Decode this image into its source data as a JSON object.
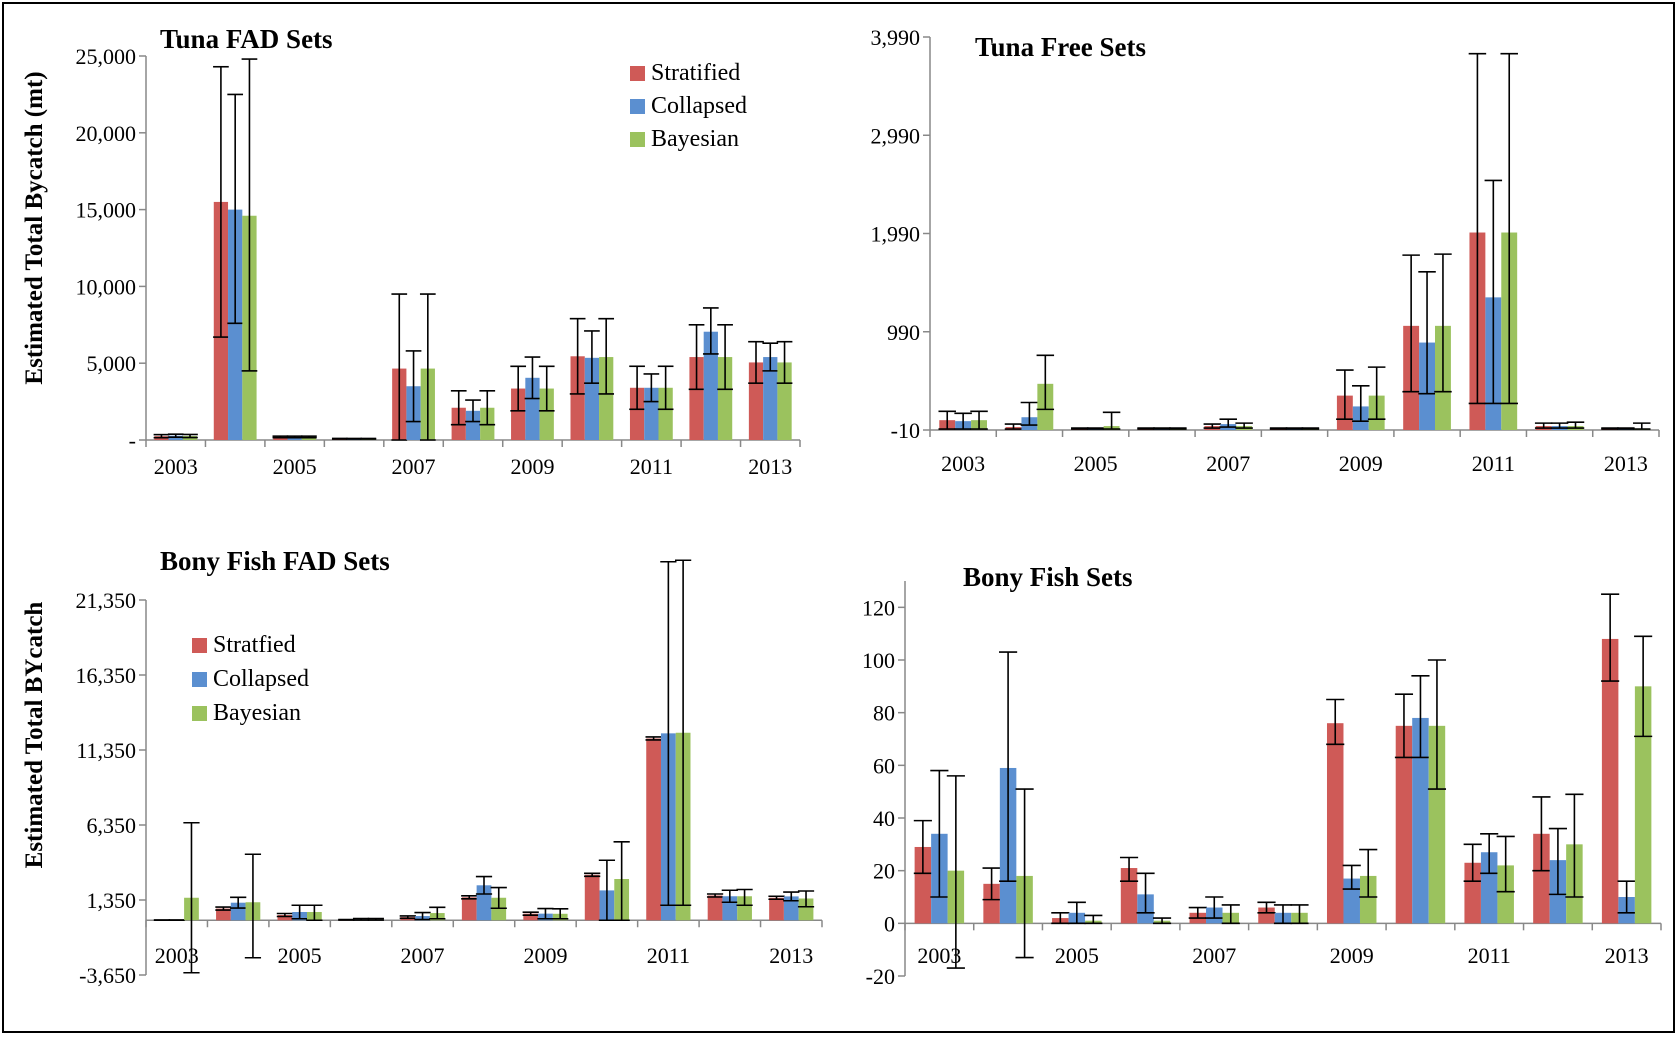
{
  "figure": {
    "ylabel_top": "Estimated Total Bycatch (mt)",
    "ylabel_bottom": "Estimated Total BYcatch"
  },
  "colors": {
    "s1": "#cf5a57",
    "s2": "#5b8fd0",
    "s3": "#9bc25e"
  },
  "chart_data": [
    {
      "type": "bar",
      "title": "Tuna FAD Sets",
      "categories": [
        "2003",
        "2004",
        "2005",
        "2006",
        "2007",
        "2008",
        "2009",
        "2010",
        "2011",
        "2012",
        "2013"
      ],
      "xtick_labels": [
        "2003",
        "",
        "2005",
        "",
        "2007",
        "",
        "2009",
        "",
        "2011",
        "",
        "2013"
      ],
      "ylim": [
        0,
        25000
      ],
      "yticks": [
        0,
        5000,
        10000,
        15000,
        20000,
        25000
      ],
      "ytick_labels": [
        "-",
        "5,000",
        "10,000",
        "15,000",
        "20,000",
        "25,000"
      ],
      "legend_position": "top-right",
      "series": [
        {
          "name": "Stratified",
          "values": [
            250,
            15500,
            200,
            80,
            4650,
            2100,
            3350,
            5450,
            3400,
            5400,
            5050
          ],
          "err_low": [
            150,
            6700,
            150,
            60,
            0,
            1000,
            1900,
            3000,
            2000,
            3300,
            3700
          ],
          "err_high": [
            350,
            24300,
            250,
            100,
            9500,
            3200,
            4800,
            7900,
            4800,
            7500,
            6400
          ]
        },
        {
          "name": "Collapsed",
          "values": [
            280,
            15000,
            200,
            80,
            3500,
            1900,
            4050,
            5350,
            3400,
            7050,
            5400
          ],
          "err_low": [
            180,
            7600,
            150,
            60,
            1200,
            1200,
            2700,
            3700,
            2500,
            5600,
            4500
          ],
          "err_high": [
            380,
            22500,
            250,
            100,
            5800,
            2600,
            5400,
            7100,
            4300,
            8600,
            6300
          ]
        },
        {
          "name": "Bayesian",
          "values": [
            260,
            14600,
            200,
            80,
            4650,
            2100,
            3350,
            5400,
            3400,
            5400,
            5050
          ],
          "err_low": [
            160,
            4500,
            150,
            60,
            0,
            1000,
            1900,
            3000,
            2000,
            3300,
            3700
          ],
          "err_high": [
            360,
            24800,
            250,
            100,
            9500,
            3200,
            4800,
            7900,
            4800,
            7500,
            6400
          ]
        }
      ]
    },
    {
      "type": "bar",
      "title": "Tuna Free Sets",
      "categories": [
        "2003",
        "2004",
        "2005",
        "2006",
        "2007",
        "2008",
        "2009",
        "2010",
        "2011",
        "2012",
        "2013"
      ],
      "xtick_labels": [
        "2003",
        "",
        "2005",
        "",
        "2007",
        "",
        "2009",
        "",
        "2011",
        "",
        "2013"
      ],
      "ylim": [
        -10,
        3990
      ],
      "yticks": [
        -10,
        990,
        1990,
        2990,
        3990
      ],
      "ytick_labels": [
        "-10",
        "990",
        "1,990",
        "2,990",
        "3,990"
      ],
      "series": [
        {
          "name": "Stratified",
          "values": [
            90,
            20,
            5,
            5,
            30,
            5,
            340,
            1050,
            2000,
            30,
            5
          ],
          "err_low": [
            0,
            0,
            0,
            0,
            10,
            0,
            100,
            380,
            260,
            10,
            0
          ],
          "err_high": [
            180,
            50,
            10,
            10,
            50,
            10,
            600,
            1770,
            3820,
            60,
            10
          ]
        },
        {
          "name": "Collapsed",
          "values": [
            80,
            120,
            5,
            5,
            50,
            5,
            230,
            880,
            1340,
            30,
            5
          ],
          "err_low": [
            0,
            40,
            0,
            0,
            20,
            0,
            80,
            360,
            260,
            10,
            0
          ],
          "err_high": [
            160,
            270,
            10,
            10,
            100,
            10,
            440,
            1600,
            2530,
            60,
            10
          ]
        },
        {
          "name": "Bayesian",
          "values": [
            90,
            460,
            30,
            5,
            30,
            5,
            340,
            1050,
            2000,
            30,
            5
          ],
          "err_low": [
            0,
            200,
            0,
            0,
            10,
            0,
            100,
            380,
            260,
            10,
            0
          ],
          "err_high": [
            180,
            750,
            170,
            10,
            60,
            10,
            630,
            1780,
            3820,
            70,
            60
          ]
        }
      ]
    },
    {
      "type": "bar",
      "title": "Bony Fish FAD Sets",
      "categories": [
        "2003",
        "2004",
        "2005",
        "2006",
        "2007",
        "2008",
        "2009",
        "2010",
        "2011",
        "2012",
        "2013"
      ],
      "xtick_labels": [
        "2003",
        "",
        "2005",
        "",
        "2007",
        "",
        "2009",
        "",
        "2011",
        "",
        "2013"
      ],
      "ylim": [
        -3650,
        21350
      ],
      "yticks": [
        -3650,
        1350,
        6350,
        11350,
        16350,
        21350
      ],
      "ytick_labels": [
        "-3,650",
        "1,350",
        "6,350",
        "11,350",
        "16,350",
        "21,350"
      ],
      "legend_position": "top-left",
      "series": [
        {
          "name": "Stratfied",
          "values": [
            10,
            780,
            350,
            30,
            210,
            1530,
            440,
            3030,
            12120,
            1650,
            1500
          ],
          "err_low": [
            0,
            680,
            250,
            10,
            130,
            1430,
            340,
            2930,
            12020,
            1550,
            1400
          ],
          "err_high": [
            20,
            880,
            450,
            50,
            290,
            1630,
            540,
            3130,
            12220,
            1750,
            1600
          ]
        },
        {
          "name": "Collapsed",
          "values": [
            10,
            1170,
            550,
            60,
            280,
            2330,
            440,
            1990,
            12460,
            1600,
            1590
          ],
          "err_low": [
            0,
            810,
            100,
            10,
            50,
            1750,
            100,
            0,
            1000,
            1200,
            1300
          ],
          "err_high": [
            20,
            1530,
            1000,
            110,
            510,
            2910,
            780,
            4000,
            23900,
            2000,
            1880
          ]
        },
        {
          "name": "Bayesian",
          "values": [
            1500,
            1200,
            550,
            60,
            480,
            1500,
            430,
            2750,
            12500,
            1600,
            1450
          ],
          "err_low": [
            -3500,
            -2500,
            0,
            10,
            100,
            800,
            100,
            0,
            1000,
            1000,
            900
          ],
          "err_high": [
            6500,
            4400,
            1000,
            110,
            860,
            2180,
            760,
            5230,
            24000,
            2050,
            1950
          ]
        }
      ]
    },
    {
      "type": "bar",
      "title": "Bony Fish Sets",
      "categories": [
        "2003",
        "2004",
        "2005",
        "2006",
        "2007",
        "2008",
        "2009",
        "2010",
        "2011",
        "2012",
        "2013"
      ],
      "xtick_labels": [
        "2003",
        "",
        "2005",
        "",
        "2007",
        "",
        "2009",
        "",
        "2011",
        "",
        "2013"
      ],
      "ylim": [
        -20,
        130
      ],
      "yticks": [
        -20,
        0,
        20,
        40,
        60,
        80,
        100,
        120
      ],
      "ytick_labels": [
        "-20",
        "0",
        "20",
        "40",
        "60",
        "80",
        "100",
        "120"
      ],
      "series": [
        {
          "name": "Stratified",
          "values": [
            29,
            15,
            2,
            21,
            4,
            6,
            76,
            75,
            23,
            34,
            108
          ],
          "err_low": [
            19,
            9,
            0,
            16,
            2,
            4,
            68,
            63,
            16,
            20,
            92
          ],
          "err_high": [
            39,
            21,
            4,
            25,
            6,
            8,
            85,
            87,
            30,
            48,
            125
          ]
        },
        {
          "name": "Collapsed",
          "values": [
            34,
            59,
            4,
            11,
            6,
            4,
            17,
            78,
            27,
            24,
            10
          ],
          "err_low": [
            10,
            16,
            0,
            4,
            2,
            0,
            13,
            63,
            19,
            11,
            4
          ],
          "err_high": [
            58,
            103,
            8,
            19,
            10,
            7,
            22,
            94,
            34,
            36,
            16
          ]
        },
        {
          "name": "Bayesian",
          "values": [
            20,
            18,
            1,
            1,
            4,
            4,
            18,
            75,
            22,
            30,
            90
          ],
          "err_low": [
            -17,
            -13,
            0,
            0,
            0,
            0,
            10,
            51,
            12,
            10,
            71
          ],
          "err_high": [
            56,
            51,
            3,
            2,
            7,
            7,
            28,
            100,
            33,
            49,
            109
          ]
        }
      ]
    }
  ]
}
